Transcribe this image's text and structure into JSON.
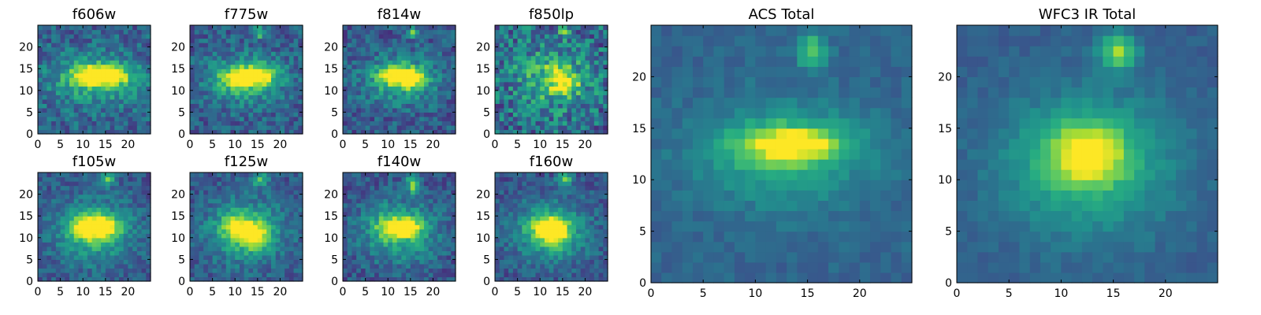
{
  "figure_title": "",
  "colors": {
    "cmap": "viridis",
    "low": "#440154",
    "mid": "#21908d",
    "high": "#fde725"
  },
  "chart_data": [
    {
      "type": "heatmap",
      "title": "f606w",
      "grid_size": 25,
      "xlim": [
        0,
        25
      ],
      "ylim": [
        0,
        25
      ],
      "xticks": [
        0,
        5,
        10,
        15,
        20
      ],
      "yticks": [
        0,
        5,
        10,
        15,
        20
      ],
      "sources": [
        {
          "x": 15,
          "y": 13,
          "amp": 0.6,
          "sx": 4,
          "sy": 1.5
        },
        {
          "x": 11,
          "y": 13,
          "amp": 0.35,
          "sx": 3,
          "sy": 1.5
        },
        {
          "x": 12,
          "y": 12,
          "amp": 0.35,
          "sx": 7,
          "sy": 4
        }
      ],
      "background": 0.32,
      "noise": 0.16,
      "seed": 11,
      "vmin": 0.0,
      "vmax": 1.0
    },
    {
      "type": "heatmap",
      "title": "f775w",
      "grid_size": 25,
      "xlim": [
        0,
        25
      ],
      "ylim": [
        0,
        25
      ],
      "xticks": [
        0,
        5,
        10,
        15,
        20
      ],
      "yticks": [
        0,
        5,
        10,
        15,
        20
      ],
      "sources": [
        {
          "x": 14,
          "y": 13,
          "amp": 0.6,
          "sx": 3,
          "sy": 1.5
        },
        {
          "x": 10,
          "y": 12,
          "amp": 0.4,
          "sx": 3,
          "sy": 1.5
        },
        {
          "x": 15,
          "y": 23,
          "amp": 0.45,
          "sx": 0.8,
          "sy": 1
        },
        {
          "x": 12,
          "y": 12,
          "amp": 0.35,
          "sx": 6,
          "sy": 4
        }
      ],
      "background": 0.3,
      "noise": 0.15,
      "seed": 23,
      "vmin": 0.0,
      "vmax": 1.0
    },
    {
      "type": "heatmap",
      "title": "f814w",
      "grid_size": 25,
      "xlim": [
        0,
        25
      ],
      "ylim": [
        0,
        25
      ],
      "xticks": [
        0,
        5,
        10,
        15,
        20
      ],
      "yticks": [
        0,
        5,
        10,
        15,
        20
      ],
      "sources": [
        {
          "x": 12,
          "y": 13,
          "amp": 0.6,
          "sx": 3,
          "sy": 1.5
        },
        {
          "x": 15,
          "y": 12,
          "amp": 0.4,
          "sx": 2,
          "sy": 1.5
        },
        {
          "x": 15,
          "y": 23,
          "amp": 0.45,
          "sx": 0.9,
          "sy": 1
        },
        {
          "x": 12,
          "y": 12,
          "amp": 0.35,
          "sx": 6,
          "sy": 4
        }
      ],
      "background": 0.28,
      "noise": 0.15,
      "seed": 37,
      "vmin": 0.0,
      "vmax": 1.0
    },
    {
      "type": "heatmap",
      "title": "f850lp",
      "grid_size": 25,
      "xlim": [
        0,
        25
      ],
      "ylim": [
        0,
        25
      ],
      "xticks": [
        0,
        5,
        10,
        15,
        20
      ],
      "yticks": [
        0,
        5,
        10,
        15,
        20
      ],
      "sources": [
        {
          "x": 15,
          "y": 11,
          "amp": 0.5,
          "sx": 2,
          "sy": 1.5
        },
        {
          "x": 14,
          "y": 14,
          "amp": 0.3,
          "sx": 2,
          "sy": 1.5
        },
        {
          "x": 15,
          "y": 23,
          "amp": 0.5,
          "sx": 0.8,
          "sy": 1
        },
        {
          "x": 12,
          "y": 12,
          "amp": 0.3,
          "sx": 6,
          "sy": 5
        }
      ],
      "background": 0.35,
      "noise": 0.24,
      "seed": 41,
      "vmin": 0.0,
      "vmax": 1.0
    },
    {
      "type": "heatmap",
      "title": "f105w",
      "grid_size": 25,
      "xlim": [
        0,
        25
      ],
      "ylim": [
        0,
        25
      ],
      "xticks": [
        0,
        5,
        10,
        15,
        20
      ],
      "yticks": [
        0,
        5,
        10,
        15,
        20
      ],
      "sources": [
        {
          "x": 14,
          "y": 12,
          "amp": 0.55,
          "sx": 2.5,
          "sy": 1.8
        },
        {
          "x": 10,
          "y": 12,
          "amp": 0.4,
          "sx": 2.5,
          "sy": 2
        },
        {
          "x": 15,
          "y": 23,
          "amp": 0.5,
          "sx": 1.2,
          "sy": 1
        },
        {
          "x": 12,
          "y": 11,
          "amp": 0.4,
          "sx": 6,
          "sy": 5
        }
      ],
      "background": 0.28,
      "noise": 0.12,
      "seed": 53,
      "vmin": 0.0,
      "vmax": 1.0
    },
    {
      "type": "heatmap",
      "title": "f125w",
      "grid_size": 25,
      "xlim": [
        0,
        25
      ],
      "ylim": [
        0,
        25
      ],
      "xticks": [
        0,
        5,
        10,
        15,
        20
      ],
      "yticks": [
        0,
        5,
        10,
        15,
        20
      ],
      "sources": [
        {
          "x": 14,
          "y": 10,
          "amp": 0.55,
          "sx": 1.8,
          "sy": 2
        },
        {
          "x": 10,
          "y": 12,
          "amp": 0.4,
          "sx": 2.5,
          "sy": 2
        },
        {
          "x": 15,
          "y": 23,
          "amp": 0.5,
          "sx": 1.2,
          "sy": 1
        },
        {
          "x": 12,
          "y": 11,
          "amp": 0.4,
          "sx": 6,
          "sy": 5
        }
      ],
      "background": 0.28,
      "noise": 0.12,
      "seed": 67,
      "vmin": 0.0,
      "vmax": 1.0
    },
    {
      "type": "heatmap",
      "title": "f140w",
      "grid_size": 25,
      "xlim": [
        0,
        25
      ],
      "ylim": [
        0,
        25
      ],
      "xticks": [
        0,
        5,
        10,
        15,
        20
      ],
      "yticks": [
        0,
        5,
        10,
        15,
        20
      ],
      "sources": [
        {
          "x": 14,
          "y": 12,
          "amp": 0.55,
          "sx": 2,
          "sy": 1.5
        },
        {
          "x": 10,
          "y": 12,
          "amp": 0.35,
          "sx": 2.5,
          "sy": 1.8
        },
        {
          "x": 15,
          "y": 22,
          "amp": 0.55,
          "sx": 0.9,
          "sy": 1.5
        },
        {
          "x": 12,
          "y": 11,
          "amp": 0.4,
          "sx": 6,
          "sy": 5
        }
      ],
      "background": 0.26,
      "noise": 0.13,
      "seed": 79,
      "vmin": 0.0,
      "vmax": 1.0
    },
    {
      "type": "heatmap",
      "title": "f160w",
      "grid_size": 25,
      "xlim": [
        0,
        25
      ],
      "ylim": [
        0,
        25
      ],
      "xticks": [
        0,
        5,
        10,
        15,
        20
      ],
      "yticks": [
        0,
        5,
        10,
        15,
        20
      ],
      "sources": [
        {
          "x": 13,
          "y": 11,
          "amp": 0.6,
          "sx": 2,
          "sy": 2
        },
        {
          "x": 10,
          "y": 12,
          "amp": 0.3,
          "sx": 2.5,
          "sy": 2
        },
        {
          "x": 15,
          "y": 23,
          "amp": 0.5,
          "sx": 1.2,
          "sy": 1
        },
        {
          "x": 12,
          "y": 11,
          "amp": 0.4,
          "sx": 6,
          "sy": 5
        }
      ],
      "background": 0.26,
      "noise": 0.12,
      "seed": 97,
      "vmin": 0.0,
      "vmax": 1.0
    },
    {
      "type": "heatmap",
      "title": "ACS Total",
      "grid_size": 25,
      "xlim": [
        0,
        25
      ],
      "ylim": [
        0,
        25
      ],
      "xticks": [
        0,
        5,
        10,
        15,
        20
      ],
      "yticks": [
        0,
        5,
        10,
        15,
        20
      ],
      "sources": [
        {
          "x": 13,
          "y": 13,
          "amp": 0.55,
          "sx": 3.5,
          "sy": 1.2
        },
        {
          "x": 15,
          "y": 22,
          "amp": 0.45,
          "sx": 1,
          "sy": 1.2
        },
        {
          "x": 12,
          "y": 12,
          "amp": 0.3,
          "sx": 6,
          "sy": 3.5
        }
      ],
      "background": 0.33,
      "noise": 0.06,
      "seed": 101,
      "vmin": 0.0,
      "vmax": 1.0
    },
    {
      "type": "heatmap",
      "title": "WFC3 IR Total",
      "grid_size": 25,
      "xlim": [
        0,
        25
      ],
      "ylim": [
        0,
        25
      ],
      "xticks": [
        0,
        5,
        10,
        15,
        20
      ],
      "yticks": [
        0,
        5,
        10,
        15,
        20
      ],
      "sources": [
        {
          "x": 12,
          "y": 12,
          "amp": 0.5,
          "sx": 2.6,
          "sy": 2
        },
        {
          "x": 15,
          "y": 22,
          "amp": 0.55,
          "sx": 1.2,
          "sy": 1.2
        },
        {
          "x": 12,
          "y": 11,
          "amp": 0.35,
          "sx": 6,
          "sy": 5
        }
      ],
      "background": 0.3,
      "noise": 0.05,
      "seed": 113,
      "vmin": 0.0,
      "vmax": 1.0
    }
  ]
}
